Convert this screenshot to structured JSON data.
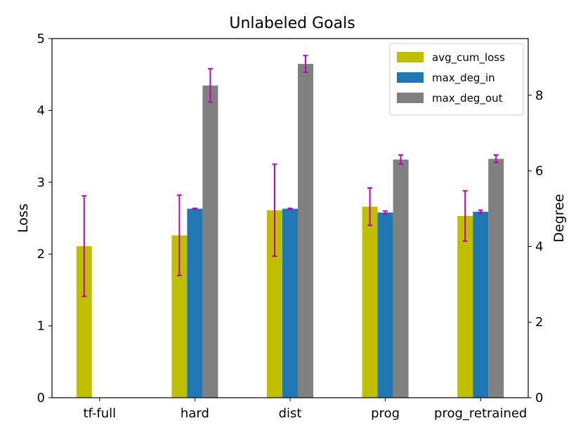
{
  "chart_data": {
    "type": "bar",
    "title": "Unlabeled Goals",
    "categories": [
      "tf-full",
      "hard",
      "dist",
      "prog",
      "prog_retrained"
    ],
    "ylabel_left": "Loss",
    "ylabel_right": "Degree",
    "ylim_left": [
      0,
      5
    ],
    "ylim_right": [
      0,
      9.5
    ],
    "yticks_left": [
      "0",
      "1",
      "2",
      "3",
      "4",
      "5"
    ],
    "yticks_right": [
      "0",
      "2",
      "4",
      "6",
      "8"
    ],
    "legend_position": "top-right",
    "error_bar_color": "#c000c0",
    "series": [
      {
        "name": "avg_cum_loss",
        "axis": "left",
        "color": "#bfbf00",
        "values": [
          2.11,
          2.26,
          2.61,
          2.66,
          2.53
        ],
        "errors": [
          0.7,
          0.56,
          0.64,
          0.26,
          0.35
        ]
      },
      {
        "name": "max_deg_in",
        "axis": "right",
        "color": "#1f77b4",
        "values": [
          null,
          5.0,
          5.0,
          4.9,
          4.92
        ],
        "errors": [
          null,
          0.01,
          0.01,
          0.04,
          0.04
        ]
      },
      {
        "name": "max_deg_out",
        "axis": "right",
        "color": "#808080",
        "values": [
          null,
          8.26,
          8.83,
          6.3,
          6.32
        ],
        "errors": [
          null,
          0.44,
          0.22,
          0.12,
          0.1
        ]
      }
    ]
  }
}
